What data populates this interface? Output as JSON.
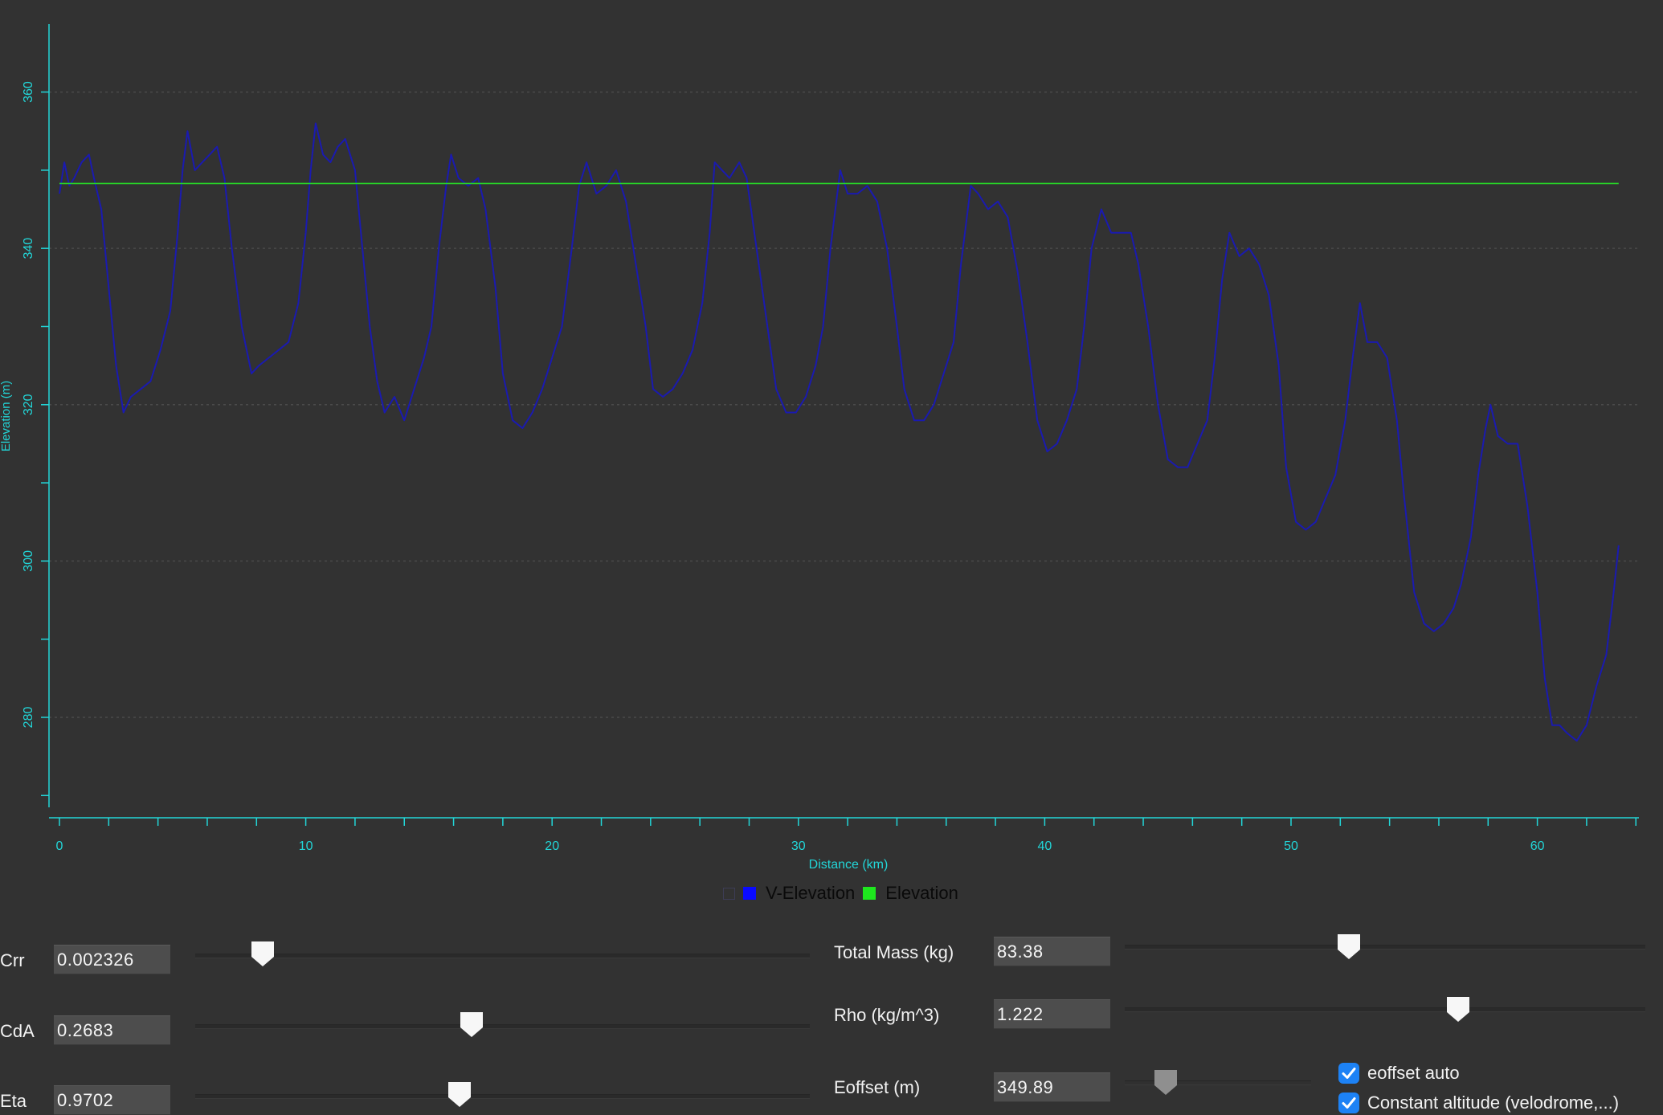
{
  "chart_data": {
    "type": "line",
    "xlabel": "Distance (km)",
    "ylabel": "Elevation (m)",
    "xlim": [
      -0.5,
      64
    ],
    "ylim": [
      269,
      366
    ],
    "x_ticks": [
      0,
      10,
      20,
      30,
      40,
      50,
      60
    ],
    "y_ticks": [
      280,
      300,
      320,
      340,
      360
    ],
    "grid": "horizontal-dotted",
    "legend": "bottom-center",
    "series": [
      {
        "name": "V-Elevation",
        "color": "#1a1ab0",
        "points": [
          [
            0.0,
            347
          ],
          [
            0.2,
            351
          ],
          [
            0.4,
            348
          ],
          [
            0.6,
            349
          ],
          [
            0.9,
            351
          ],
          [
            1.2,
            352
          ],
          [
            1.4,
            349
          ],
          [
            1.7,
            345
          ],
          [
            2.0,
            335
          ],
          [
            2.3,
            325
          ],
          [
            2.6,
            319
          ],
          [
            2.9,
            321
          ],
          [
            3.3,
            322
          ],
          [
            3.7,
            323
          ],
          [
            4.1,
            327
          ],
          [
            4.5,
            332
          ],
          [
            4.8,
            342
          ],
          [
            5.0,
            350
          ],
          [
            5.2,
            355
          ],
          [
            5.5,
            350
          ],
          [
            5.8,
            351
          ],
          [
            6.1,
            352
          ],
          [
            6.4,
            353
          ],
          [
            6.7,
            349
          ],
          [
            7.0,
            340
          ],
          [
            7.4,
            330
          ],
          [
            7.8,
            324
          ],
          [
            8.1,
            325
          ],
          [
            8.5,
            326
          ],
          [
            8.9,
            327
          ],
          [
            9.3,
            328
          ],
          [
            9.7,
            333
          ],
          [
            10.0,
            342
          ],
          [
            10.2,
            350
          ],
          [
            10.4,
            356
          ],
          [
            10.7,
            352
          ],
          [
            11.0,
            351
          ],
          [
            11.3,
            353
          ],
          [
            11.6,
            354
          ],
          [
            12.0,
            350
          ],
          [
            12.3,
            340
          ],
          [
            12.6,
            330
          ],
          [
            12.9,
            323
          ],
          [
            13.2,
            319
          ],
          [
            13.6,
            321
          ],
          [
            14.0,
            318
          ],
          [
            14.4,
            322
          ],
          [
            14.8,
            326
          ],
          [
            15.1,
            330
          ],
          [
            15.4,
            340
          ],
          [
            15.7,
            348
          ],
          [
            15.9,
            352
          ],
          [
            16.2,
            349
          ],
          [
            16.6,
            348
          ],
          [
            17.0,
            349
          ],
          [
            17.3,
            345
          ],
          [
            17.7,
            335
          ],
          [
            18.0,
            324
          ],
          [
            18.4,
            318
          ],
          [
            18.8,
            317
          ],
          [
            19.2,
            319
          ],
          [
            19.6,
            322
          ],
          [
            20.0,
            326
          ],
          [
            20.4,
            330
          ],
          [
            20.8,
            340
          ],
          [
            21.1,
            348
          ],
          [
            21.4,
            351
          ],
          [
            21.8,
            347
          ],
          [
            22.2,
            348
          ],
          [
            22.6,
            350
          ],
          [
            23.0,
            346
          ],
          [
            23.4,
            338
          ],
          [
            23.8,
            330
          ],
          [
            24.1,
            322
          ],
          [
            24.5,
            321
          ],
          [
            24.9,
            322
          ],
          [
            25.3,
            324
          ],
          [
            25.7,
            327
          ],
          [
            26.1,
            333
          ],
          [
            26.4,
            342
          ],
          [
            26.6,
            351
          ],
          [
            26.9,
            350
          ],
          [
            27.2,
            349
          ],
          [
            27.6,
            351
          ],
          [
            27.9,
            349
          ],
          [
            28.3,
            340
          ],
          [
            28.7,
            331
          ],
          [
            29.1,
            322
          ],
          [
            29.5,
            319
          ],
          [
            29.9,
            319
          ],
          [
            30.3,
            321
          ],
          [
            30.7,
            325
          ],
          [
            31.0,
            330
          ],
          [
            31.3,
            340
          ],
          [
            31.7,
            350
          ],
          [
            32.0,
            347
          ],
          [
            32.4,
            347
          ],
          [
            32.8,
            348
          ],
          [
            33.2,
            346
          ],
          [
            33.6,
            340
          ],
          [
            34.0,
            330
          ],
          [
            34.3,
            322
          ],
          [
            34.7,
            318
          ],
          [
            35.1,
            318
          ],
          [
            35.5,
            320
          ],
          [
            35.9,
            324
          ],
          [
            36.3,
            328
          ],
          [
            36.6,
            338
          ],
          [
            37.0,
            348
          ],
          [
            37.3,
            347
          ],
          [
            37.7,
            345
          ],
          [
            38.1,
            346
          ],
          [
            38.5,
            344
          ],
          [
            38.9,
            337
          ],
          [
            39.3,
            328
          ],
          [
            39.7,
            318
          ],
          [
            40.1,
            314
          ],
          [
            40.5,
            315
          ],
          [
            40.9,
            318
          ],
          [
            41.3,
            322
          ],
          [
            41.6,
            330
          ],
          [
            41.9,
            340
          ],
          [
            42.3,
            345
          ],
          [
            42.7,
            342
          ],
          [
            43.1,
            342
          ],
          [
            43.5,
            342
          ],
          [
            43.8,
            338
          ],
          [
            44.2,
            330
          ],
          [
            44.6,
            320
          ],
          [
            45.0,
            313
          ],
          [
            45.4,
            312
          ],
          [
            45.8,
            312
          ],
          [
            46.2,
            315
          ],
          [
            46.6,
            318
          ],
          [
            46.9,
            326
          ],
          [
            47.2,
            336
          ],
          [
            47.5,
            342
          ],
          [
            47.9,
            339
          ],
          [
            48.3,
            340
          ],
          [
            48.7,
            338
          ],
          [
            49.1,
            334
          ],
          [
            49.5,
            325
          ],
          [
            49.8,
            312
          ],
          [
            50.2,
            305
          ],
          [
            50.6,
            304
          ],
          [
            51.0,
            305
          ],
          [
            51.4,
            308
          ],
          [
            51.8,
            311
          ],
          [
            52.2,
            318
          ],
          [
            52.5,
            326
          ],
          [
            52.8,
            333
          ],
          [
            53.1,
            328
          ],
          [
            53.5,
            328
          ],
          [
            53.9,
            326
          ],
          [
            54.3,
            318
          ],
          [
            54.6,
            308
          ],
          [
            55.0,
            296
          ],
          [
            55.4,
            292
          ],
          [
            55.8,
            291
          ],
          [
            56.2,
            292
          ],
          [
            56.6,
            294
          ],
          [
            56.9,
            297
          ],
          [
            57.3,
            303
          ],
          [
            57.6,
            311
          ],
          [
            57.9,
            317
          ],
          [
            58.1,
            320
          ],
          [
            58.4,
            316
          ],
          [
            58.8,
            315
          ],
          [
            59.2,
            315
          ],
          [
            59.6,
            307
          ],
          [
            60.0,
            296
          ],
          [
            60.3,
            285
          ],
          [
            60.6,
            279
          ],
          [
            60.9,
            279
          ],
          [
            61.2,
            278
          ],
          [
            61.6,
            277
          ],
          [
            62.0,
            279
          ],
          [
            62.4,
            284
          ],
          [
            62.8,
            288
          ],
          [
            63.1,
            296
          ],
          [
            63.3,
            302
          ]
        ]
      },
      {
        "name": "Elevation",
        "color": "#28d828",
        "points": [
          [
            0.0,
            348.3
          ],
          [
            63.3,
            348.3
          ]
        ]
      }
    ]
  },
  "legend": {
    "items": [
      {
        "label": "V-Elevation",
        "color": "#0a0aff"
      },
      {
        "label": "Elevation",
        "color": "#1ee81e"
      }
    ]
  },
  "controls": {
    "crr": {
      "label": "Crr",
      "value": "0.002326",
      "slider_fraction": 0.11
    },
    "cda": {
      "label": "CdA",
      "value": "0.2683",
      "slider_fraction": 0.45
    },
    "eta": {
      "label": "Eta",
      "value": "0.9702",
      "slider_fraction": 0.43
    },
    "total_mass": {
      "label": "Total Mass (kg)",
      "value": "83.38",
      "slider_fraction": 0.43
    },
    "rho": {
      "label": "Rho (kg/m^3)",
      "value": "1.222",
      "slider_fraction": 0.64
    },
    "eoffset": {
      "label": "Eoffset (m)",
      "value": "349.89",
      "slider_fraction": 0.22
    }
  },
  "checkboxes": {
    "eoffset_auto": {
      "label": "eoffset auto",
      "checked": true
    },
    "constant_altitude": {
      "label": "Constant altitude (velodrome,...)",
      "checked": true
    }
  },
  "colors": {
    "background": "#323232",
    "axis": "#22d6d8",
    "checkbox": "#1d82f5"
  }
}
